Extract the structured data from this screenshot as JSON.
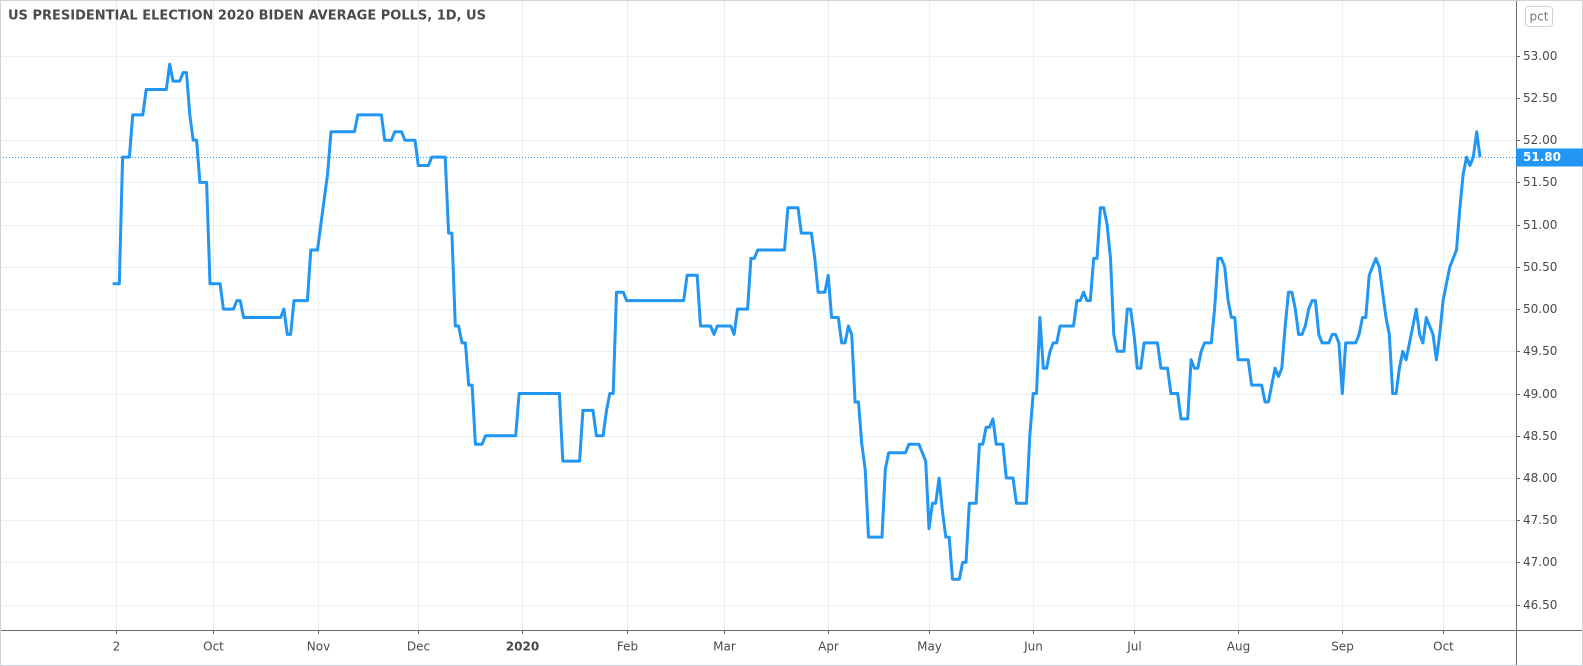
{
  "chart_data": {
    "type": "line",
    "title": "US PRESIDENTIAL ELECTION 2020 BIDEN AVERAGE POLLS, 1D, US",
    "scale_button": "pct",
    "grid": true,
    "xlim": [
      -33.5,
      417.7
    ],
    "ylim": [
      46.2,
      53.66
    ],
    "xticks": [
      {
        "value": 1,
        "label": "2"
      },
      {
        "value": 30,
        "label": "Oct"
      },
      {
        "value": 61,
        "label": "Nov"
      },
      {
        "value": 91,
        "label": "Dec"
      },
      {
        "value": 122,
        "label": "2020"
      },
      {
        "value": 153,
        "label": "Feb"
      },
      {
        "value": 182,
        "label": "Mar"
      },
      {
        "value": 213,
        "label": "Apr"
      },
      {
        "value": 243,
        "label": "May"
      },
      {
        "value": 274,
        "label": "Jun"
      },
      {
        "value": 304,
        "label": "Jul"
      },
      {
        "value": 335,
        "label": "Aug"
      },
      {
        "value": 366,
        "label": "Sep"
      },
      {
        "value": 396,
        "label": "Oct"
      }
    ],
    "yticks": [
      {
        "value": 46.5,
        "label": "46.50"
      },
      {
        "value": 47,
        "label": "47.00"
      },
      {
        "value": 47.5,
        "label": "47.50"
      },
      {
        "value": 48,
        "label": "48.00"
      },
      {
        "value": 48.5,
        "label": "48.50"
      },
      {
        "value": 49,
        "label": "49.00"
      },
      {
        "value": 49.5,
        "label": "49.50"
      },
      {
        "value": 50,
        "label": "50.00"
      },
      {
        "value": 50.5,
        "label": "50.50"
      },
      {
        "value": 51,
        "label": "51.00"
      },
      {
        "value": 51.5,
        "label": "51.50"
      },
      {
        "value": 52,
        "label": "52.00"
      },
      {
        "value": 52.5,
        "label": "52.50"
      },
      {
        "value": 53,
        "label": "53.00"
      }
    ],
    "price_line": {
      "value": 51.8,
      "label": "51.80"
    },
    "series": [
      {
        "name": "Biden average polls",
        "color": "#2196f3",
        "x": [
          0,
          2,
          3,
          5,
          6,
          9,
          10,
          16,
          17,
          18,
          20,
          21,
          22,
          23,
          24,
          25,
          26,
          28,
          29,
          32,
          33,
          36,
          37,
          38,
          39,
          50,
          51,
          52,
          53,
          54,
          58,
          59,
          61,
          63,
          64,
          65,
          72,
          73,
          80,
          81,
          83,
          84,
          86,
          87,
          90,
          91,
          94,
          95,
          99,
          100,
          101,
          102,
          103,
          104,
          105,
          106,
          107,
          108,
          110,
          111,
          120,
          121,
          133,
          134,
          139,
          140,
          143,
          144,
          146,
          147,
          148,
          149,
          150,
          152,
          153,
          170,
          171,
          174,
          175,
          178,
          179,
          180,
          184,
          185,
          186,
          189,
          190,
          191,
          192,
          200,
          201,
          204,
          205,
          208,
          209,
          210,
          212,
          213,
          214,
          216,
          217,
          218,
          219,
          220,
          221,
          222,
          223,
          224,
          225,
          229,
          230,
          231,
          236,
          237,
          240,
          242,
          243,
          244,
          245,
          246,
          247,
          248,
          249,
          250,
          252,
          253,
          254,
          255,
          257,
          258,
          259,
          260,
          261,
          262,
          263,
          265,
          266,
          268,
          269,
          272,
          273,
          274,
          275,
          276,
          277,
          278,
          279,
          280,
          281,
          282,
          286,
          287,
          288,
          289,
          290,
          291,
          292,
          293,
          294,
          295,
          296,
          297,
          298,
          299,
          301,
          302,
          303,
          304,
          305,
          306,
          307,
          311,
          312,
          314,
          315,
          317,
          318,
          320,
          321,
          322,
          323,
          324,
          325,
          327,
          328,
          329,
          330,
          331,
          332,
          333,
          334,
          335,
          338,
          339,
          342,
          343,
          344,
          345,
          346,
          347,
          348,
          349,
          350,
          351,
          352,
          353,
          354,
          355,
          356,
          357,
          358,
          359,
          360,
          362,
          363,
          364,
          365,
          366,
          367,
          370,
          371,
          372,
          373,
          374,
          375,
          376,
          377,
          378,
          379,
          380,
          381,
          382,
          383,
          384,
          385,
          386,
          387,
          388,
          389,
          390,
          391,
          392,
          393,
          394,
          395,
          396,
          397,
          398,
          399,
          400,
          401,
          402,
          403,
          404,
          405,
          406,
          407
        ],
        "values": [
          50.3,
          50.3,
          51.8,
          51.8,
          52.3,
          52.3,
          52.6,
          52.6,
          52.9,
          52.7,
          52.7,
          52.8,
          52.8,
          52.3,
          52.0,
          52.0,
          51.5,
          51.5,
          50.3,
          50.3,
          50.0,
          50.0,
          50.1,
          50.1,
          49.9,
          49.9,
          50.0,
          49.7,
          49.7,
          50.1,
          50.1,
          50.7,
          50.7,
          51.3,
          51.6,
          52.1,
          52.1,
          52.3,
          52.3,
          52.0,
          52.0,
          52.1,
          52.1,
          52.0,
          52.0,
          51.7,
          51.7,
          51.8,
          51.8,
          50.9,
          50.9,
          49.8,
          49.8,
          49.6,
          49.6,
          49.1,
          49.1,
          48.4,
          48.4,
          48.5,
          48.5,
          49.0,
          49.0,
          48.2,
          48.2,
          48.8,
          48.8,
          48.5,
          48.5,
          48.8,
          49.0,
          49.0,
          50.2,
          50.2,
          50.1,
          50.1,
          50.4,
          50.4,
          49.8,
          49.8,
          49.7,
          49.8,
          49.8,
          49.7,
          50.0,
          50.0,
          50.6,
          50.6,
          50.7,
          50.7,
          51.2,
          51.2,
          50.9,
          50.9,
          50.6,
          50.2,
          50.2,
          50.4,
          49.9,
          49.9,
          49.6,
          49.6,
          49.8,
          49.7,
          48.9,
          48.9,
          48.4,
          48.1,
          47.3,
          47.3,
          48.1,
          48.3,
          48.3,
          48.4,
          48.4,
          48.2,
          47.4,
          47.7,
          47.7,
          48.0,
          47.6,
          47.3,
          47.3,
          46.8,
          46.8,
          47.0,
          47.0,
          47.7,
          47.7,
          48.4,
          48.4,
          48.6,
          48.6,
          48.7,
          48.4,
          48.4,
          48.0,
          48.0,
          47.7,
          47.7,
          48.5,
          49.0,
          49.0,
          49.9,
          49.3,
          49.3,
          49.5,
          49.6,
          49.6,
          49.8,
          49.8,
          50.1,
          50.1,
          50.2,
          50.1,
          50.1,
          50.6,
          50.6,
          51.2,
          51.2,
          51.0,
          50.6,
          49.7,
          49.5,
          49.5,
          50.0,
          50.0,
          49.7,
          49.3,
          49.3,
          49.6,
          49.6,
          49.3,
          49.3,
          49.0,
          49.0,
          48.7,
          48.7,
          49.4,
          49.3,
          49.3,
          49.5,
          49.6,
          49.6,
          50.0,
          50.6,
          50.6,
          50.5,
          50.1,
          49.9,
          49.9,
          49.4,
          49.4,
          49.1,
          49.1,
          48.9,
          48.9,
          49.1,
          49.3,
          49.2,
          49.3,
          49.8,
          50.2,
          50.2,
          50.0,
          49.7,
          49.7,
          49.8,
          50.0,
          50.1,
          50.1,
          49.7,
          49.6,
          49.6,
          49.7,
          49.7,
          49.6,
          49.0,
          49.6,
          49.6,
          49.7,
          49.9,
          49.9,
          50.4,
          50.5,
          50.6,
          50.5,
          50.2,
          49.9,
          49.7,
          49.0,
          49.0,
          49.3,
          49.5,
          49.4,
          49.6,
          49.8,
          50.0,
          49.7,
          49.6,
          49.9,
          49.8,
          49.7,
          49.4,
          49.7,
          50.1,
          50.3,
          50.5,
          50.6,
          50.7,
          51.2,
          51.6,
          51.8,
          51.7,
          51.8,
          52.1,
          51.8
        ]
      }
    ]
  }
}
